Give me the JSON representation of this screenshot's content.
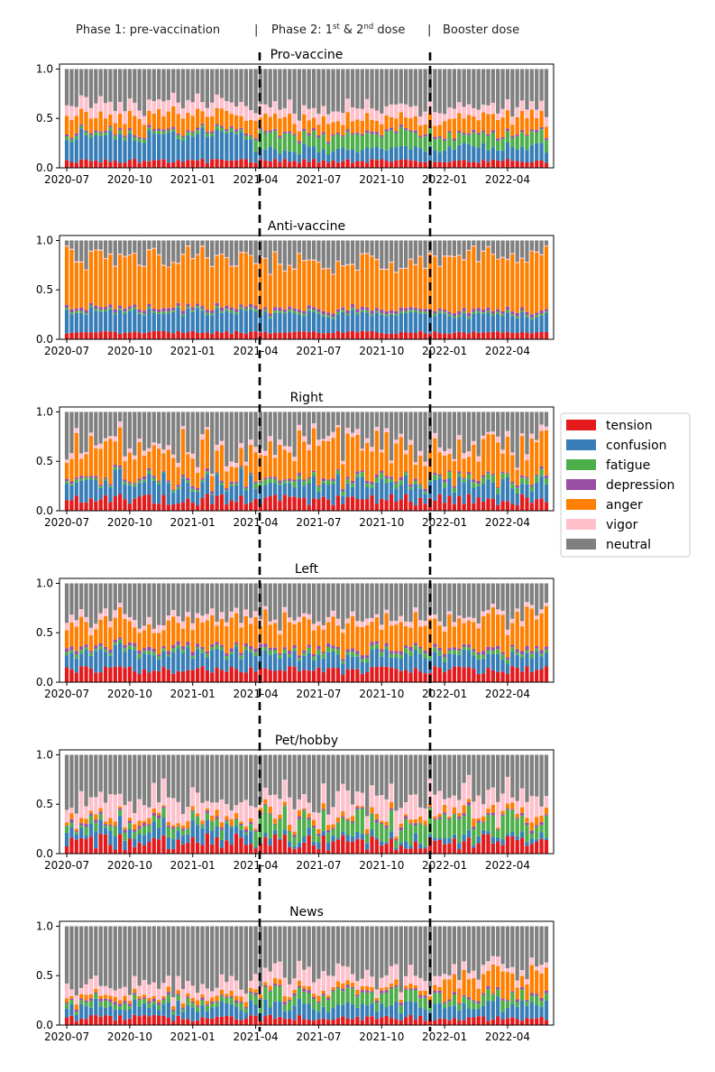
{
  "header": {
    "phase1": "Phase 1: pre-vaccination",
    "sep": "|",
    "phase2_prefix": "Phase 2: 1",
    "phase2_sup1": "st",
    "phase2_mid": " & 2",
    "phase2_sup2": "nd",
    "phase2_suffix": " dose",
    "booster": "Booster dose"
  },
  "colors": {
    "tension": "#e41a1c",
    "confusion": "#377eb8",
    "fatigue": "#4daf4a",
    "depression": "#984ea3",
    "anger": "#ff7f00",
    "vigor": "#ffc0cb",
    "neutral": "#808080"
  },
  "chart_data": {
    "type": "bar",
    "stacked": true,
    "x_unit": "weekly bars, 2020-07 to 2022-05 (100 bars)",
    "categories_emotions": [
      "tension",
      "confusion",
      "fatigue",
      "depression",
      "anger",
      "vigor",
      "neutral"
    ],
    "xtick_labels": [
      "2020-07",
      "2020-10",
      "2021-01",
      "2021-04",
      "2021-07",
      "2021-10",
      "2022-01",
      "2022-04"
    ],
    "yticks": [
      "0.0",
      "0.5",
      "1.0"
    ],
    "ylim": [
      0,
      1.05
    ],
    "phase_boundaries": [
      "2021-04 (bar 39)",
      "2021-12 (bar 78)"
    ],
    "legend": [
      "tension",
      "confusion",
      "fatigue",
      "depression",
      "anger",
      "vigor",
      "neutral"
    ],
    "panels": [
      {
        "title": "Pro-vaccine",
        "tension": 0.07,
        "confusion": [
          0.25,
          0.12,
          0.14
        ],
        "fatigue": [
          0.03,
          0.15,
          0.12
        ],
        "depression": 0.02,
        "anger": [
          0.16,
          0.14,
          0.16
        ],
        "vigor": [
          0.12,
          0.11,
          0.09
        ],
        "noise": 0.05
      },
      {
        "title": "Anti-vaccine",
        "tension": 0.07,
        "confusion": [
          0.21,
          0.18,
          0.17
        ],
        "fatigue": [
          0.02,
          0.02,
          0.02
        ],
        "depression": 0.03,
        "anger": [
          0.5,
          0.47,
          0.54
        ],
        "vigor": [
          0.01,
          0.01,
          0.01
        ],
        "noise": 0.035
      },
      {
        "title": "Right",
        "tension": 0.11,
        "confusion": [
          0.18,
          0.15,
          0.16
        ],
        "fatigue": [
          0.02,
          0.04,
          0.05
        ],
        "depression": 0.02,
        "anger": [
          0.3,
          0.29,
          0.32
        ],
        "vigor": [
          0.04,
          0.04,
          0.04
        ],
        "noise": 0.09
      },
      {
        "title": "Left",
        "tension": 0.12,
        "confusion": [
          0.18,
          0.14,
          0.15
        ],
        "fatigue": [
          0.03,
          0.04,
          0.04
        ],
        "depression": 0.03,
        "anger": [
          0.23,
          0.26,
          0.33
        ],
        "vigor": [
          0.06,
          0.05,
          0.04
        ],
        "noise": 0.06
      },
      {
        "title": "Pet/hobby",
        "tension": 0.12,
        "confusion": [
          0.11,
          0.05,
          0.05
        ],
        "fatigue": [
          0.06,
          0.17,
          0.15
        ],
        "depression": 0.02,
        "anger": [
          0.04,
          0.04,
          0.05
        ],
        "vigor": [
          0.16,
          0.17,
          0.16
        ],
        "noise": 0.12
      },
      {
        "title": "News",
        "tension": 0.07,
        "confusion": [
          0.11,
          0.12,
          0.14
        ],
        "fatigue": [
          0.05,
          0.12,
          0.08
        ],
        "depression": 0.02,
        "anger": [
          0.04,
          0.04,
          0.2
        ],
        "vigor": [
          0.11,
          0.14,
          0.07
        ],
        "noise": 0.08
      }
    ]
  }
}
